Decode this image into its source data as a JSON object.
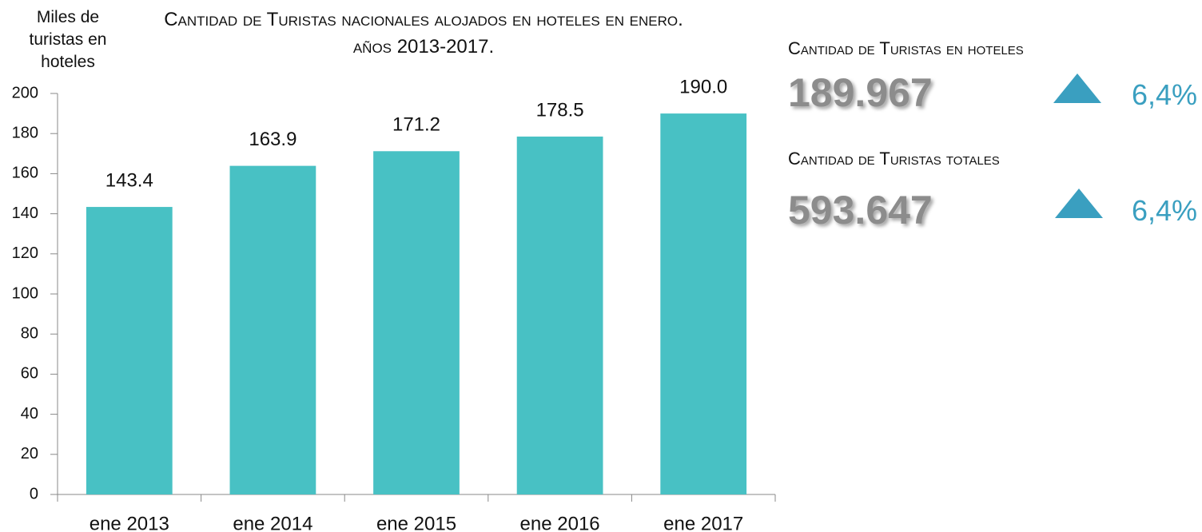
{
  "chart_data": {
    "type": "bar",
    "title": "Cantidad de Turistas nacionales alojados en hoteles en enero. años 2013-2017.",
    "y_label": "Miles de turistas en hoteles",
    "categories": [
      "ene 2013",
      "ene 2014",
      "ene 2015",
      "ene 2016",
      "ene 2017"
    ],
    "values": [
      143.4,
      163.9,
      171.2,
      178.5,
      190.0
    ],
    "value_labels": [
      "143.4",
      "163.9",
      "171.2",
      "178.5",
      "190.0"
    ],
    "color": "#48c1c4",
    "ylim": [
      0,
      200
    ],
    "yticks": [
      0,
      20,
      40,
      60,
      80,
      100,
      120,
      140,
      160,
      180,
      200
    ],
    "grid": false
  },
  "kpis": [
    {
      "label": "Cantidad de Turistas en hoteles",
      "value": "189.967",
      "change": "6,4%"
    },
    {
      "label": "Cantidad de Turistas totales",
      "value": "593.647",
      "change": "6,4%"
    }
  ]
}
